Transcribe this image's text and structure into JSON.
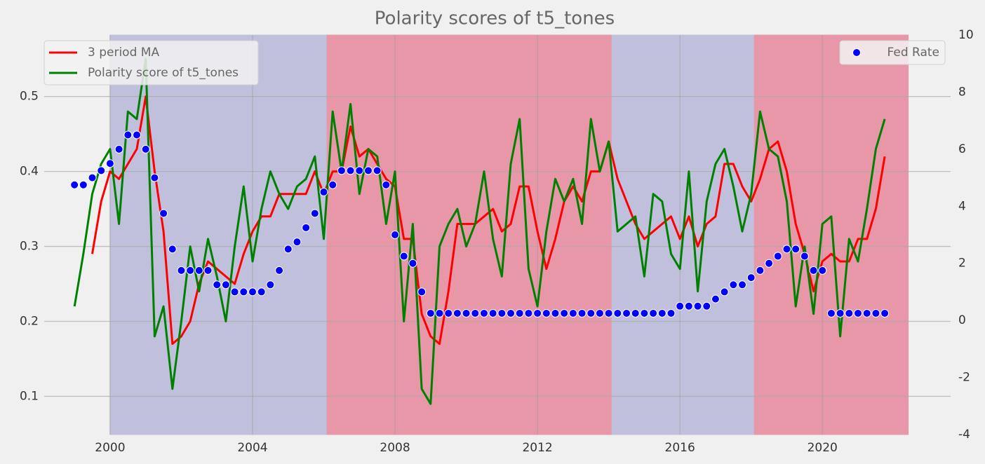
{
  "chart_data": {
    "type": "line",
    "title": "Polarity scores of t5_tones",
    "xlim": [
      1998.15,
      2023.6
    ],
    "xticks": [
      2000,
      2004,
      2008,
      2012,
      2016,
      2020
    ],
    "ylim": [
      0.049,
      0.582
    ],
    "yticks": [
      0.1,
      0.2,
      0.3,
      0.4,
      0.5
    ],
    "y2lim": [
      -4,
      10
    ],
    "y2ticks": [
      -4,
      -2,
      0,
      2,
      4,
      6,
      8,
      10
    ],
    "grid": true,
    "legend": "upper left",
    "y2_legend": "upper right",
    "spans": [
      {
        "x0": 2000,
        "x1": 2006.09,
        "color": "#c0c0dd"
      },
      {
        "x0": 2006.09,
        "x1": 2014.09,
        "color": "#e897a8"
      },
      {
        "x0": 2014.09,
        "x1": 2018.09,
        "color": "#c0c0dd"
      },
      {
        "x0": 2018.09,
        "x1": 2022.41,
        "color": "#e897a8"
      }
    ],
    "x": [
      1999,
      1999.25,
      1999.5,
      1999.75,
      2000,
      2000.25,
      2000.5,
      2000.75,
      2001,
      2001.25,
      2001.5,
      2001.75,
      2002,
      2002.25,
      2002.5,
      2002.75,
      2003,
      2003.25,
      2003.5,
      2003.75,
      2004,
      2004.25,
      2004.5,
      2004.75,
      2005,
      2005.25,
      2005.5,
      2005.75,
      2006,
      2006.25,
      2006.5,
      2006.75,
      2007,
      2007.25,
      2007.5,
      2007.75,
      2008,
      2008.25,
      2008.5,
      2008.75,
      2009,
      2009.25,
      2009.5,
      2009.75,
      2010,
      2010.25,
      2010.5,
      2010.75,
      2011,
      2011.25,
      2011.5,
      2011.75,
      2012,
      2012.25,
      2012.5,
      2012.75,
      2013,
      2013.25,
      2013.5,
      2013.75,
      2014,
      2014.25,
      2014.5,
      2014.75,
      2015,
      2015.25,
      2015.5,
      2015.75,
      2016,
      2016.25,
      2016.5,
      2016.75,
      2017,
      2017.25,
      2017.5,
      2017.75,
      2018,
      2018.25,
      2018.5,
      2018.75,
      2019,
      2019.25,
      2019.5,
      2019.75,
      2020,
      2020.25,
      2020.5,
      2020.75,
      2021,
      2021.25,
      2021.5,
      2021.75
    ],
    "series": [
      {
        "name": "3 period MA",
        "color": "#ff0000",
        "values": [
          null,
          null,
          0.29,
          0.36,
          0.4,
          0.39,
          0.41,
          0.43,
          0.5,
          0.4,
          0.32,
          0.17,
          0.18,
          0.2,
          0.25,
          0.28,
          0.27,
          0.26,
          0.25,
          0.29,
          0.32,
          0.34,
          0.34,
          0.37,
          0.37,
          0.37,
          0.37,
          0.4,
          0.37,
          0.4,
          0.4,
          0.46,
          0.42,
          0.43,
          0.41,
          0.39,
          0.38,
          0.31,
          0.31,
          0.21,
          0.18,
          0.17,
          0.24,
          0.33,
          0.33,
          0.33,
          0.34,
          0.35,
          0.32,
          0.33,
          0.38,
          0.38,
          0.32,
          0.27,
          0.31,
          0.36,
          0.38,
          0.36,
          0.4,
          0.4,
          0.44,
          0.39,
          0.36,
          0.33,
          0.31,
          0.32,
          0.33,
          0.34,
          0.31,
          0.34,
          0.3,
          0.33,
          0.34,
          0.41,
          0.41,
          0.38,
          0.36,
          0.39,
          0.43,
          0.44,
          0.4,
          0.33,
          0.29,
          0.24,
          0.28,
          0.29,
          0.28,
          0.28,
          0.31,
          0.31,
          0.35,
          0.42
        ]
      },
      {
        "name": "Polarity score of t5_tones",
        "color": "#008000",
        "values": [
          0.22,
          0.29,
          0.37,
          0.41,
          0.43,
          0.33,
          0.48,
          0.47,
          0.55,
          0.18,
          0.22,
          0.11,
          0.2,
          0.3,
          0.24,
          0.31,
          0.26,
          0.2,
          0.3,
          0.38,
          0.28,
          0.35,
          0.4,
          0.37,
          0.35,
          0.38,
          0.39,
          0.42,
          0.31,
          0.48,
          0.4,
          0.49,
          0.37,
          0.43,
          0.42,
          0.33,
          0.4,
          0.2,
          0.33,
          0.11,
          0.09,
          0.3,
          0.33,
          0.35,
          0.3,
          0.33,
          0.4,
          0.31,
          0.26,
          0.41,
          0.47,
          0.27,
          0.22,
          0.32,
          0.39,
          0.36,
          0.39,
          0.33,
          0.47,
          0.4,
          0.44,
          0.32,
          0.33,
          0.34,
          0.26,
          0.37,
          0.36,
          0.29,
          0.27,
          0.4,
          0.24,
          0.36,
          0.41,
          0.43,
          0.38,
          0.32,
          0.37,
          0.48,
          0.43,
          0.42,
          0.36,
          0.22,
          0.3,
          0.21,
          0.33,
          0.34,
          0.18,
          0.31,
          0.28,
          0.35,
          0.43,
          0.47
        ]
      },
      {
        "name": "Fed Rate",
        "color": "#0000ff",
        "type": "scatter",
        "axis": "y2",
        "values": [
          4.75,
          4.75,
          5.0,
          5.25,
          5.5,
          6.0,
          6.5,
          6.5,
          6.0,
          5.0,
          3.75,
          2.5,
          1.75,
          1.75,
          1.75,
          1.75,
          1.25,
          1.25,
          1.0,
          1.0,
          1.0,
          1.0,
          1.25,
          1.75,
          2.5,
          2.75,
          3.25,
          3.75,
          4.5,
          4.75,
          5.25,
          5.25,
          5.25,
          5.25,
          5.25,
          4.75,
          3.0,
          2.25,
          2.0,
          1.0,
          0.25,
          0.25,
          0.25,
          0.25,
          0.25,
          0.25,
          0.25,
          0.25,
          0.25,
          0.25,
          0.25,
          0.25,
          0.25,
          0.25,
          0.25,
          0.25,
          0.25,
          0.25,
          0.25,
          0.25,
          0.25,
          0.25,
          0.25,
          0.25,
          0.25,
          0.25,
          0.25,
          0.25,
          0.5,
          0.5,
          0.5,
          0.5,
          0.75,
          1.0,
          1.25,
          1.25,
          1.5,
          1.75,
          2.0,
          2.25,
          2.5,
          2.5,
          2.25,
          1.75,
          1.75,
          0.25,
          0.25,
          0.25,
          0.25,
          0.25,
          0.25,
          0.25
        ]
      }
    ]
  }
}
